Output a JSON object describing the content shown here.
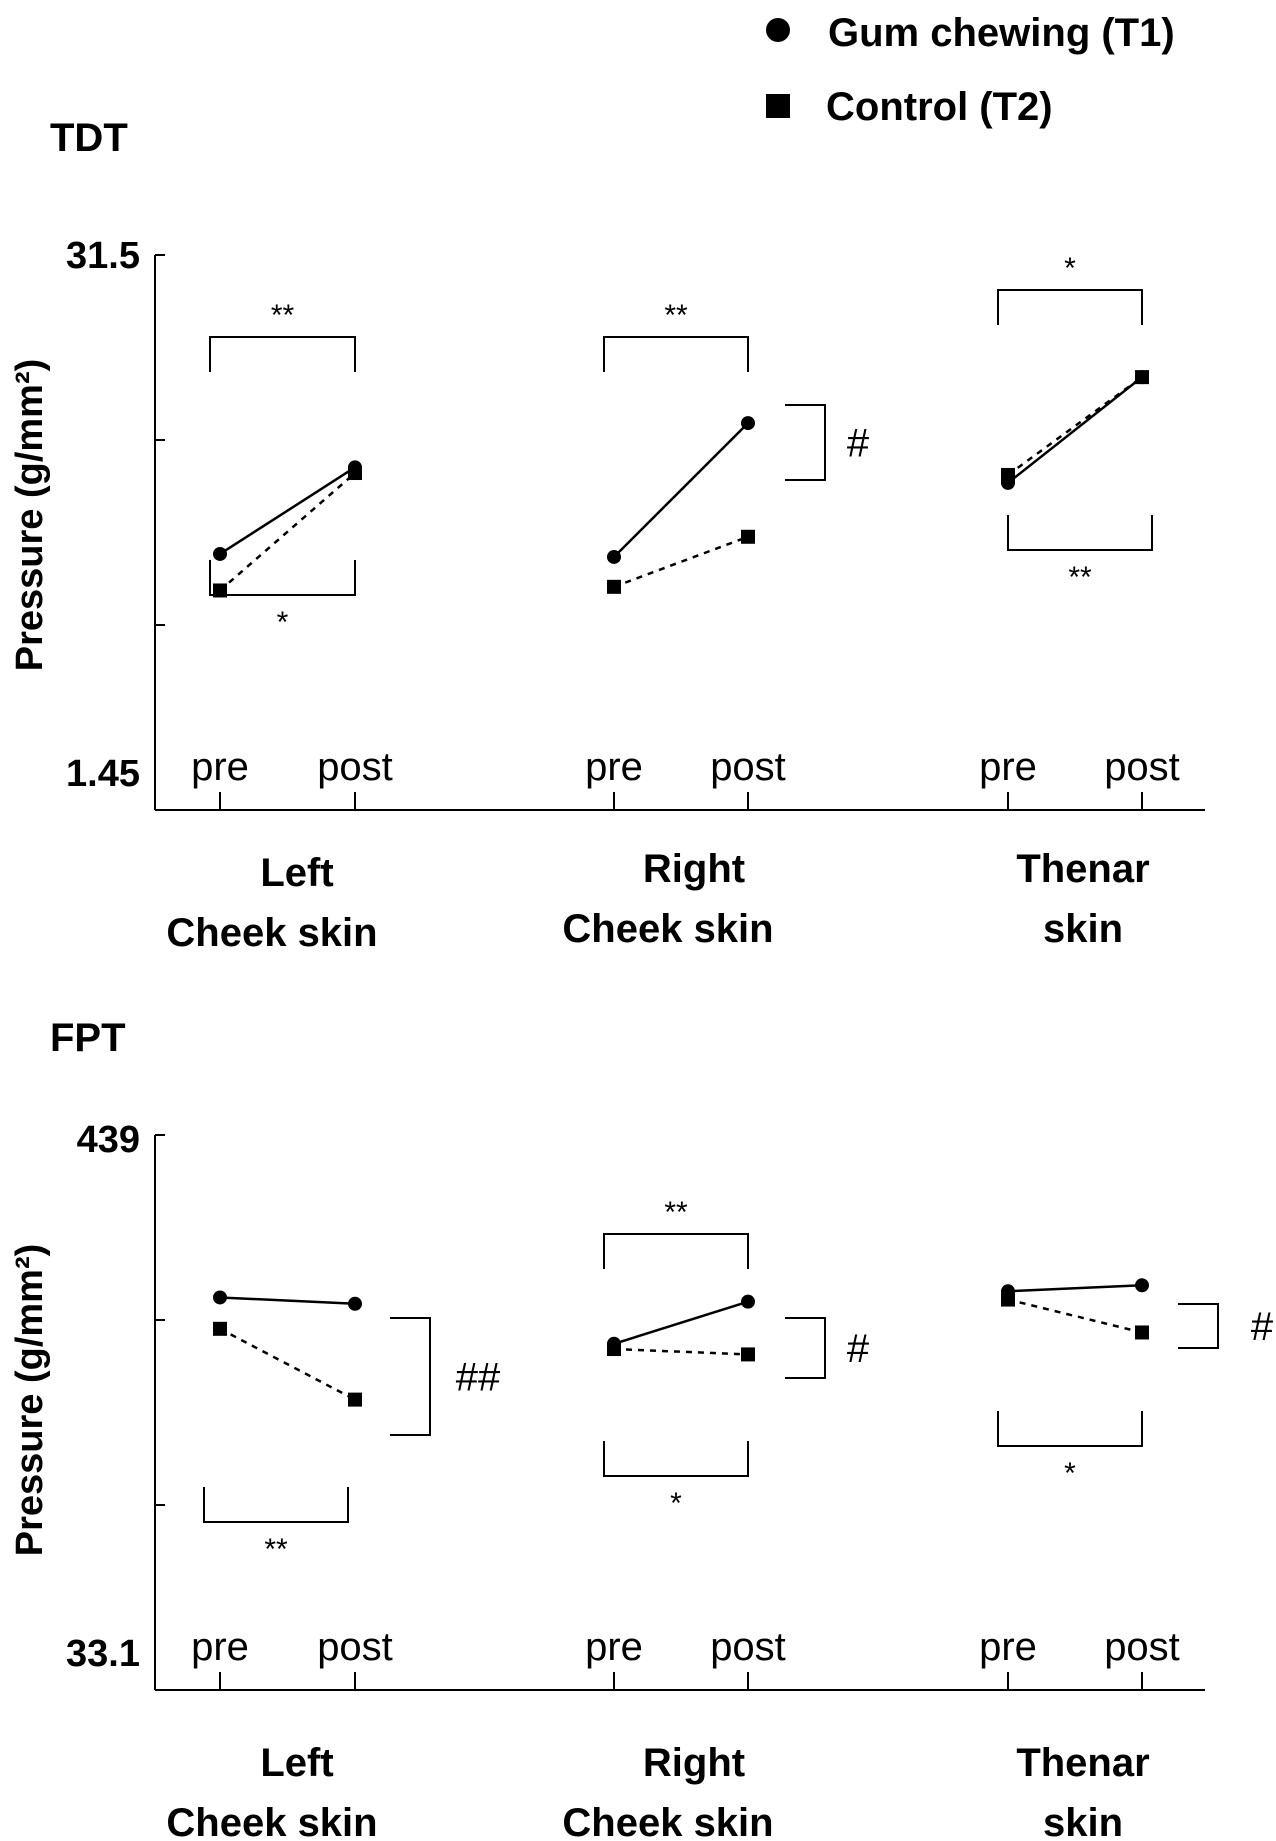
{
  "legend": {
    "items": [
      {
        "label": "Gum chewing (T1)",
        "marker": "circle"
      },
      {
        "label": "Control (T2)",
        "marker": "square"
      }
    ]
  },
  "chart_data": [
    {
      "type": "line",
      "title": "TDT",
      "ylabel": "Pressure (g/mm²)",
      "yscale": "log",
      "ylim": [
        1.45,
        31.5
      ],
      "ytick_labels": [
        "31.5",
        "1.45"
      ],
      "groups": [
        "Left\nCheek skin",
        "Right\nCheek skin",
        "Thenar\nskin"
      ],
      "x_labels": [
        "pre",
        "post"
      ],
      "series": [
        {
          "name": "Gum chewing (T1)",
          "style": "solid",
          "marker": "circle",
          "values": [
            [
              6.0,
              9.7
            ],
            [
              5.9,
              12.4
            ],
            [
              8.9,
              16.0
            ]
          ]
        },
        {
          "name": "Control (T2)",
          "style": "dashed",
          "marker": "square",
          "values": [
            [
              4.9,
              9.4
            ],
            [
              5.0,
              6.6
            ],
            [
              9.3,
              16.0
            ]
          ]
        }
      ],
      "annotations": [
        {
          "group": 0,
          "text": "**",
          "between": "pre-post",
          "position": "above"
        },
        {
          "group": 0,
          "text": "*",
          "between": "pre-post",
          "position": "below"
        },
        {
          "group": 1,
          "text": "**",
          "between": "pre-post",
          "position": "above"
        },
        {
          "group": 1,
          "text": "#",
          "between": "T1-T2 post",
          "position": "right"
        },
        {
          "group": 2,
          "text": "*",
          "between": "pre-post",
          "position": "above"
        },
        {
          "group": 2,
          "text": "**",
          "between": "pre-post",
          "position": "below"
        }
      ]
    },
    {
      "type": "line",
      "title": "FPT",
      "ylabel": "Pressure (g/mm²)",
      "yscale": "log",
      "ylim": [
        33.1,
        439
      ],
      "ytick_labels": [
        "439",
        "33.1"
      ],
      "groups": [
        "Left\nCheek skin",
        "Right\nCheek skin",
        "Thenar\nskin"
      ],
      "x_labels": [
        "pre",
        "post"
      ],
      "series": [
        {
          "name": "Gum chewing (T1)",
          "style": "solid",
          "marker": "circle",
          "values": [
            [
              206,
              200
            ],
            [
              166,
              202
            ],
            [
              212,
              218
            ]
          ]
        },
        {
          "name": "Control (T2)",
          "style": "dashed",
          "marker": "square",
          "values": [
            [
              178,
              128
            ],
            [
              162,
              158
            ],
            [
              204,
              175
            ]
          ]
        }
      ],
      "annotations": [
        {
          "group": 0,
          "text": "**",
          "between": "pre-post",
          "position": "below"
        },
        {
          "group": 0,
          "text": "##",
          "between": "T1-T2 post",
          "position": "right"
        },
        {
          "group": 1,
          "text": "**",
          "between": "pre-post",
          "position": "above"
        },
        {
          "group": 1,
          "text": "*",
          "between": "pre-post",
          "position": "below"
        },
        {
          "group": 1,
          "text": "#",
          "between": "T1-T2 post",
          "position": "right"
        },
        {
          "group": 2,
          "text": "*",
          "between": "pre-post",
          "position": "below"
        },
        {
          "group": 2,
          "text": "#",
          "between": "T1-T2 post",
          "position": "right"
        }
      ]
    }
  ]
}
